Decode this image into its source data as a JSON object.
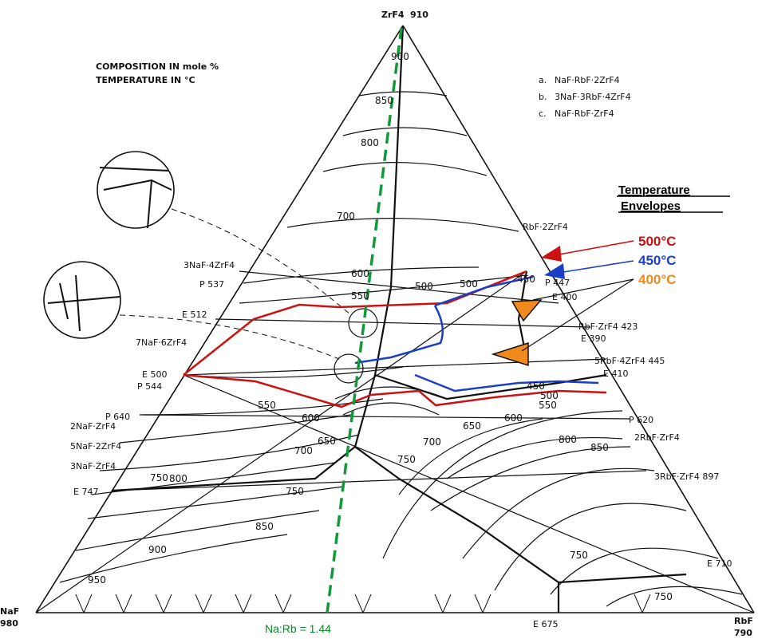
{
  "header": {
    "composition": "COMPOSITION IN mole %",
    "temperature": "TEMPERATURE IN °C"
  },
  "vertices": {
    "top": {
      "name": "ZrF4",
      "temp": "910"
    },
    "left": {
      "name": "NaF",
      "temp": "980"
    },
    "right": {
      "name": "RbF",
      "temp": "790"
    }
  },
  "compound_legend": [
    {
      "key": "a.",
      "text": "NaF·RbF·2ZrF4"
    },
    {
      "key": "b.",
      "text": "3NaF·3RbF·4ZrF4"
    },
    {
      "key": "c.",
      "text": "NaF·RbF·ZrF4"
    }
  ],
  "left_compounds": [
    "3NaF·4ZrF4",
    "7NaF·6ZrF4",
    "2NaF·ZrF4",
    "5NaF·2ZrF4",
    "3NaF·ZrF4"
  ],
  "right_compounds": [
    "RbF·2ZrF4",
    "RbF·ZrF4 423",
    "5RbF·4ZrF4 445",
    "2RbF·ZrF4",
    "3RbF·ZrF4 897"
  ],
  "invariant_points": [
    "P 537",
    "E 512",
    "E 500",
    "P 544",
    "P 640",
    "E 747",
    "P 447",
    "E 400",
    "E 390",
    "E 410",
    "P 620",
    "E 710",
    "E 675"
  ],
  "isotherms": [
    "900",
    "850",
    "800",
    "700",
    "600",
    "550",
    "500",
    "600",
    "650",
    "700",
    "750",
    "750",
    "800",
    "850",
    "900",
    "950",
    "550",
    "600",
    "650",
    "700",
    "750",
    "800",
    "850",
    "750",
    "750",
    "500",
    "550",
    "450",
    "500",
    "450"
  ],
  "legend": {
    "title_line1": "Temperature",
    "title_line2": "Envelopes",
    "items": [
      {
        "label": "500°C",
        "color": "#cc1111"
      },
      {
        "label": "450°C",
        "color": "#1a3fc4"
      },
      {
        "label": "400°C",
        "color": "#f08a1c"
      }
    ]
  },
  "ratio_line": {
    "label": "Na:Rb = 1.44",
    "color": "#129a3a"
  }
}
